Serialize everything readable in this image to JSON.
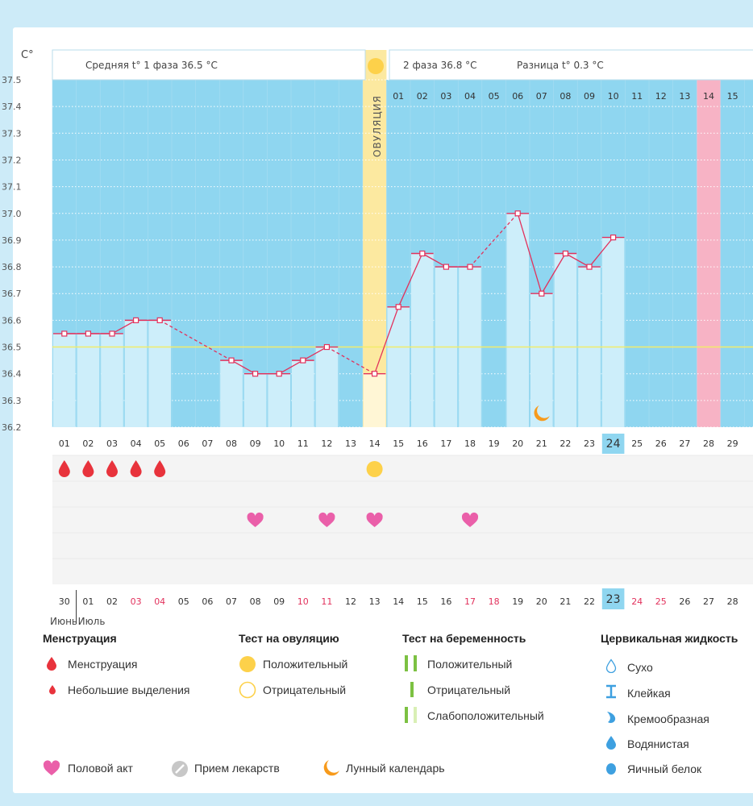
{
  "header": {
    "unit": "C°",
    "phase1": "Средняя t° 1 фаза 36.5 °C",
    "phase2": "2 фаза 36.8 °C",
    "diff": "Разница t° 0.3 °C",
    "ovulation_label": "ОВУЛЯЦИЯ"
  },
  "colors": {
    "phase_bg": "#8fd6f0",
    "bar": "#cdeefa",
    "ovulation": "#fce9a0",
    "highlight_day": "#f7b3c5",
    "temp_line": "#e2315c",
    "cover_line": "#f2ec6a",
    "today": "#8fd6f0",
    "weekend_red": "#e2315c"
  },
  "chart_data": {
    "type": "line",
    "xlabel": "",
    "ylabel": "C°",
    "ylim": [
      36.2,
      37.5
    ],
    "y_ticks": [
      "37.5",
      "37.4",
      "37.3",
      "37.2",
      "37.1",
      "37.0",
      "36.9",
      "36.8",
      "36.7",
      "36.6",
      "36.5",
      "36.4",
      "36.3",
      "36.2"
    ],
    "cycle_days": [
      "01",
      "02",
      "03",
      "04",
      "05",
      "06",
      "07",
      "08",
      "09",
      "10",
      "11",
      "12",
      "13",
      "14",
      "15",
      "16",
      "17",
      "18",
      "19",
      "20",
      "21",
      "22",
      "23",
      "24",
      "25",
      "26",
      "27",
      "28",
      "29"
    ],
    "temperatures": [
      36.55,
      36.55,
      36.55,
      36.6,
      36.6,
      null,
      null,
      36.45,
      36.4,
      36.4,
      36.45,
      36.5,
      null,
      36.4,
      36.65,
      36.85,
      36.8,
      36.8,
      null,
      37.0,
      36.7,
      36.85,
      36.8,
      36.91,
      null,
      null,
      null,
      null,
      null
    ],
    "cover_line": 36.5,
    "ovulation_day": "14",
    "post_ovulation_days": [
      "01",
      "02",
      "03",
      "04",
      "05",
      "06",
      "07",
      "08",
      "09",
      "10",
      "11",
      "12",
      "13",
      "14",
      "15"
    ],
    "highlight_post_day": "14",
    "today_cycle_day": "24",
    "dates": [
      "30",
      "01",
      "02",
      "03",
      "04",
      "05",
      "06",
      "07",
      "08",
      "09",
      "10",
      "11",
      "12",
      "13",
      "14",
      "15",
      "16",
      "17",
      "18",
      "19",
      "20",
      "21",
      "22",
      "23",
      "24",
      "25",
      "26",
      "27",
      "28"
    ],
    "red_dates": [
      "03",
      "04",
      "10",
      "11",
      "17",
      "18",
      "24",
      "25"
    ],
    "today_date": "23",
    "months": [
      "Июнь",
      "Июль"
    ],
    "menstruation_days": [
      "01",
      "02",
      "03",
      "04",
      "05"
    ],
    "ovulation_test_positive_day": "14",
    "intercourse_days": [
      "09",
      "12",
      "14",
      "18"
    ],
    "moon_day": "21"
  },
  "legend": {
    "menstruation": {
      "title": "Менструация",
      "items": [
        "Менструация",
        "Небольшие выделения"
      ]
    },
    "ovulation_test": {
      "title": "Тест на овуляцию",
      "items": [
        "Положительный",
        "Отрицательный"
      ]
    },
    "pregnancy_test": {
      "title": "Тест на беременность",
      "items": [
        "Положительный",
        "Отрицательный",
        "Слабоположительный"
      ]
    },
    "cervical": {
      "title": "Цервикальная жидкость",
      "items": [
        "Сухо",
        "Клейкая",
        "Кремообразная",
        "Водянистая",
        "Яичный белок"
      ]
    },
    "bottom": {
      "intercourse": "Половой акт",
      "medication": "Прием лекарств",
      "lunar": "Лунный календарь"
    }
  }
}
